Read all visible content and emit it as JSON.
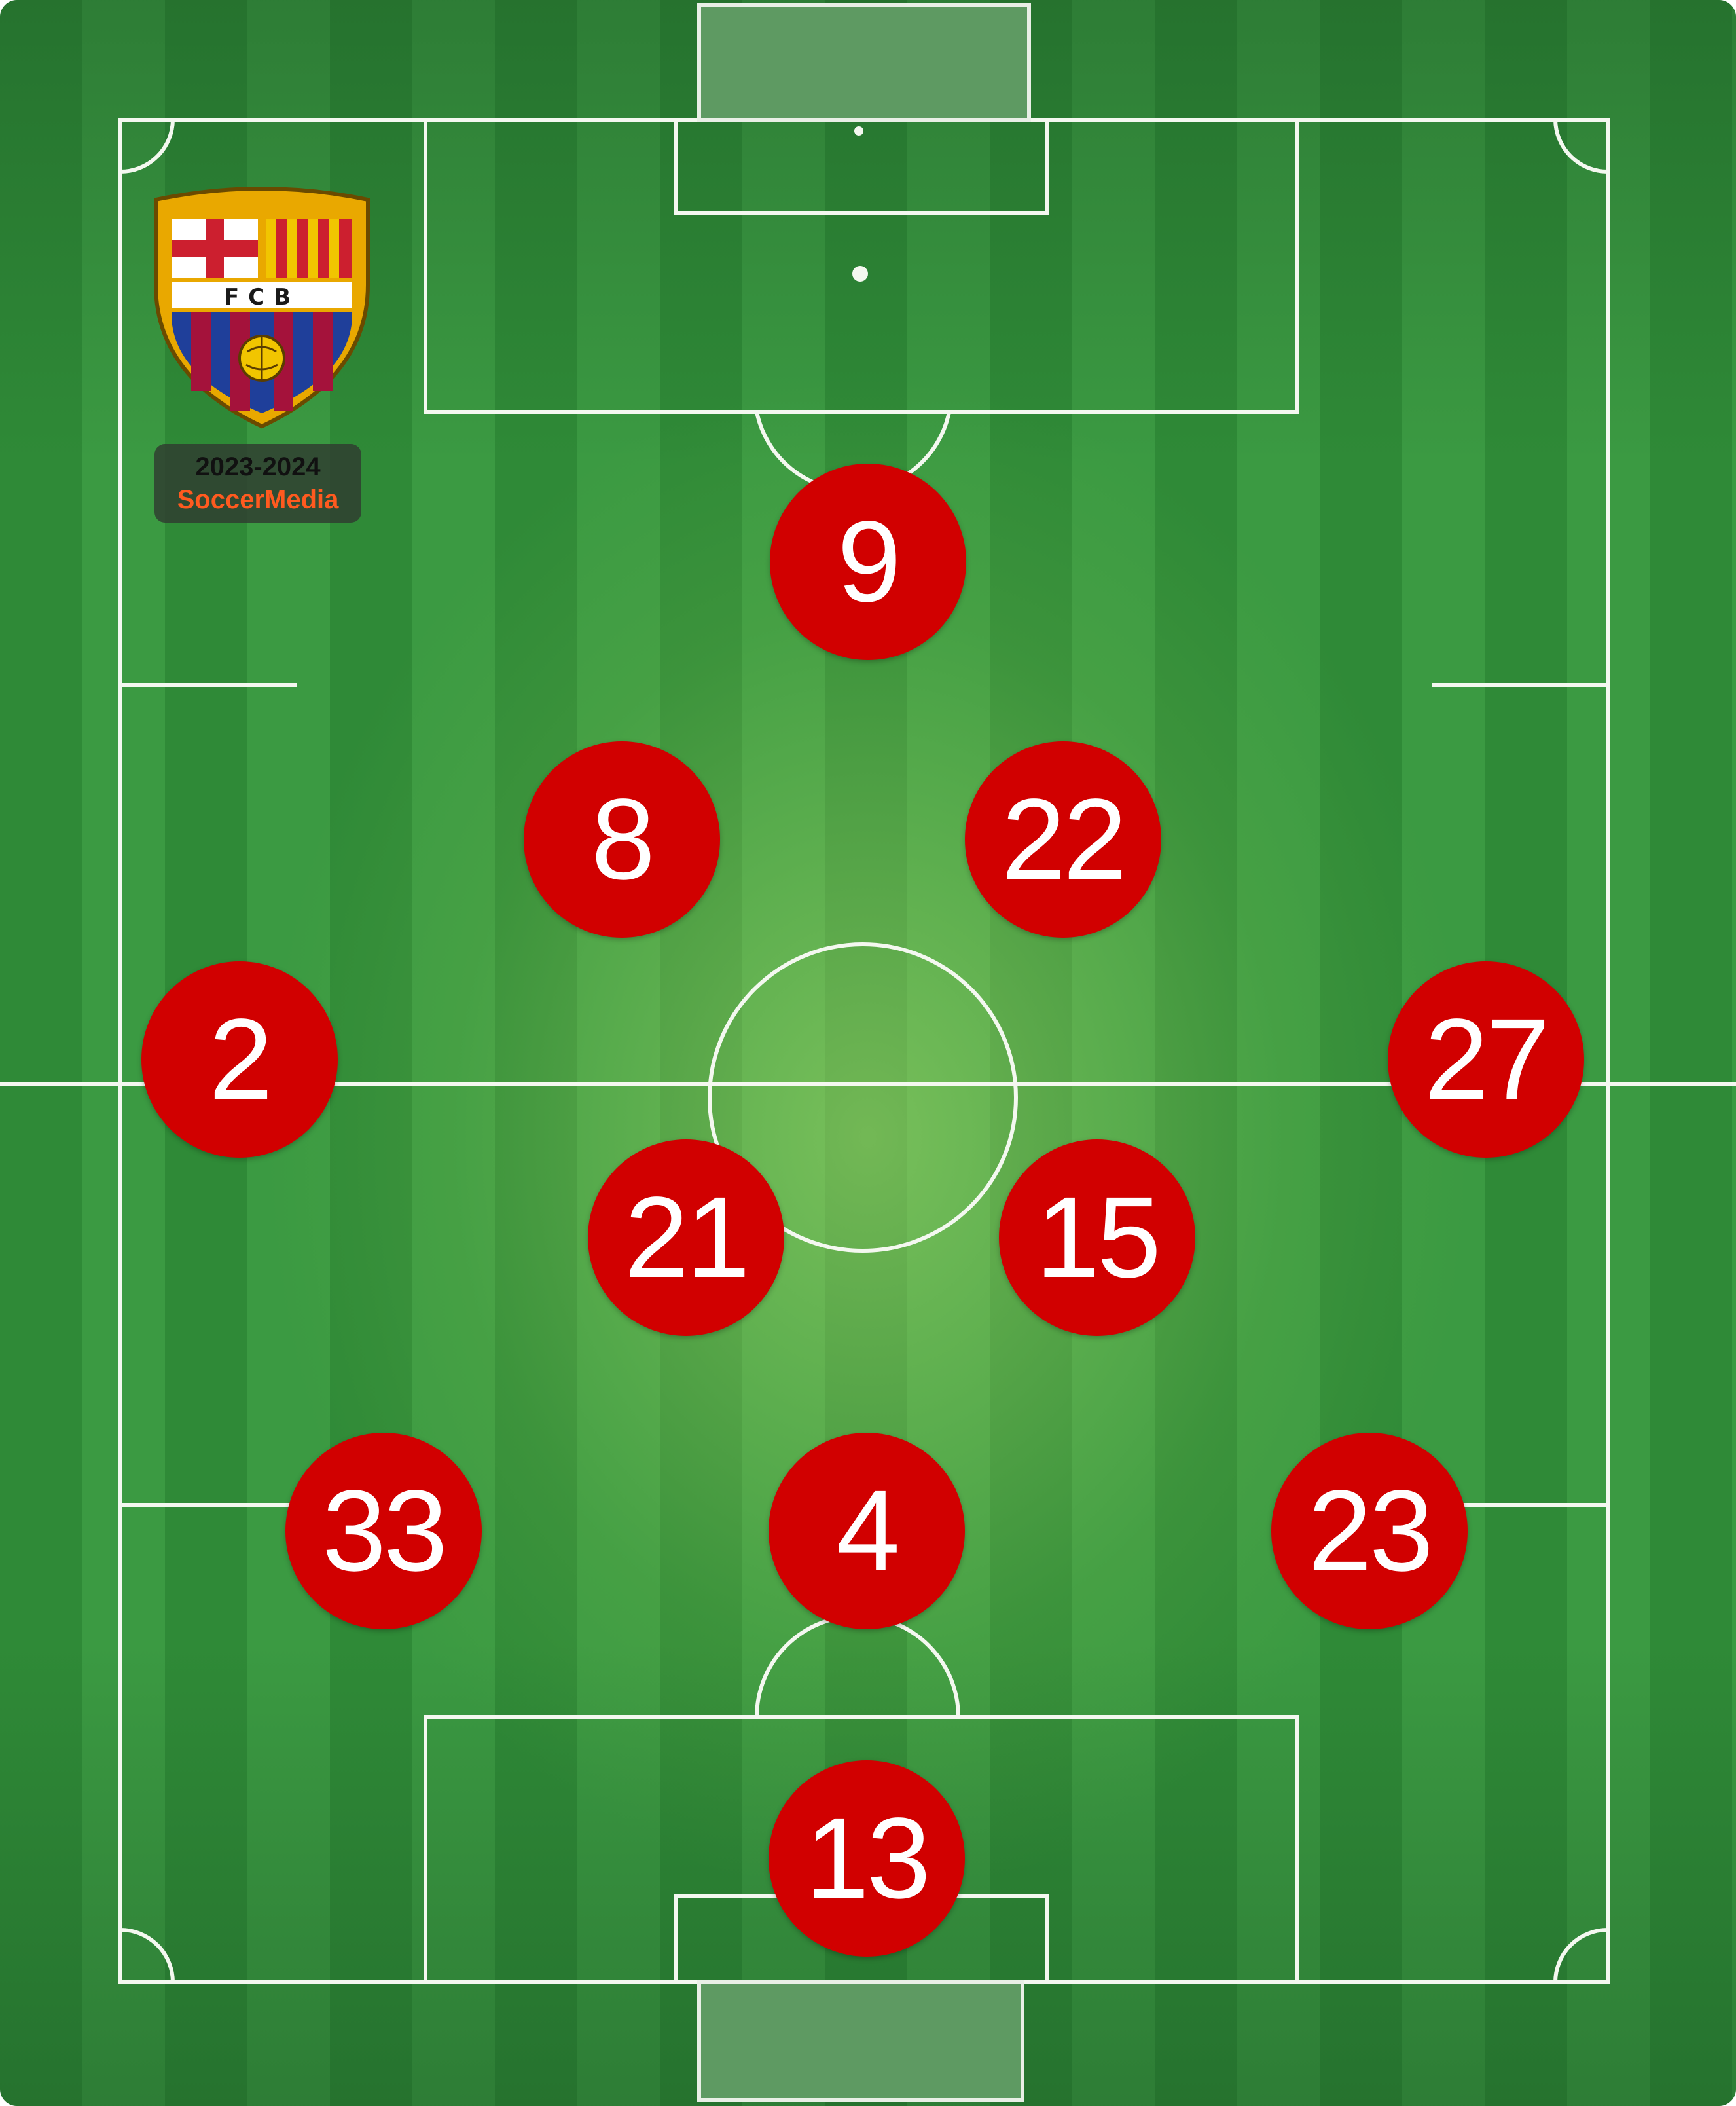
{
  "team": {
    "crest_text": "FCB",
    "season": "2023-2024",
    "brand": "SoccerMedia"
  },
  "colors": {
    "player_badge": "#d10000",
    "player_number": "#ffffff",
    "brand_text": "#ff5a1f"
  },
  "players": [
    {
      "number": "9"
    },
    {
      "number": "8"
    },
    {
      "number": "22"
    },
    {
      "number": "2"
    },
    {
      "number": "27"
    },
    {
      "number": "21"
    },
    {
      "number": "15"
    },
    {
      "number": "33"
    },
    {
      "number": "4"
    },
    {
      "number": "23"
    },
    {
      "number": "13"
    }
  ]
}
